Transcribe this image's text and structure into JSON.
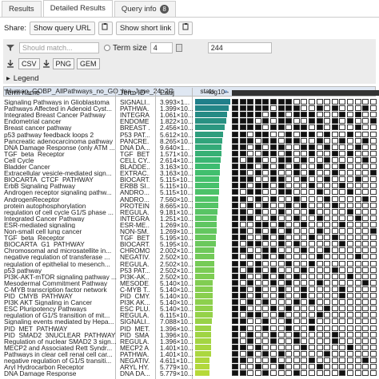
{
  "tabs": [
    {
      "label": "Results"
    },
    {
      "label": "Detailed Results"
    },
    {
      "label": "Query info",
      "badge": "8"
    }
  ],
  "share": {
    "label": "Share:",
    "query_url": "Show query URL",
    "short_link": "Show short link"
  },
  "filter": {
    "search_placeholder": "Should match...",
    "term_size_label": "Term size",
    "term_size_min": "4",
    "term_size_max": "244"
  },
  "export": {
    "buttons": [
      "CSV",
      "PNG",
      "GEM"
    ]
  },
  "legend_label": "Legend",
  "table": {
    "title": "Human_GOBP_AllPathways_no_GO_iea_June_24_2C",
    "stats": "stats",
    "headers": {
      "term": "Term name",
      "id": "Term ID",
      "padj": "Padj",
      "bar": "--log10--"
    },
    "rows": [
      {
        "name": "Signaling Pathways in Glioblastoma",
        "id": "SIGNALI...",
        "padj": "3.993×1...",
        "bar": 1.0,
        "cells": [
          1,
          1,
          1,
          1,
          1,
          1,
          1,
          1,
          0,
          0,
          0,
          0,
          0,
          0,
          0,
          0,
          0,
          0,
          0
        ]
      },
      {
        "name": "Pathways Affected in Adenoid Cyst...",
        "id": "PATHWA...",
        "padj": "1.399×10...",
        "bar": 0.95,
        "cells": [
          1,
          1,
          1,
          1,
          1,
          0,
          1,
          1,
          1,
          0,
          0,
          1,
          0,
          1,
          0,
          0,
          0,
          1,
          0
        ]
      },
      {
        "name": "Integrated Breast Cancer Pathway",
        "id": "INTEGRA...",
        "padj": "1.061×10...",
        "bar": 0.92,
        "cells": [
          1,
          1,
          1,
          1,
          0,
          1,
          1,
          0,
          1,
          1,
          1,
          0,
          0,
          0,
          1,
          0,
          1,
          0,
          0
        ]
      },
      {
        "name": "Endometrial cancer",
        "id": "ENDOME...",
        "padj": "1.822×10...",
        "bar": 0.88,
        "cells": [
          1,
          1,
          1,
          0,
          1,
          0,
          1,
          1,
          0,
          0,
          1,
          1,
          0,
          1,
          0,
          1,
          0,
          0,
          1
        ]
      },
      {
        "name": "Breast cancer pathway",
        "id": "BREAST ...",
        "padj": "2.456×10...",
        "bar": 0.85,
        "cells": [
          1,
          1,
          1,
          1,
          0,
          1,
          1,
          0,
          1,
          1,
          0,
          1,
          0,
          1,
          0,
          0,
          1,
          0,
          0
        ]
      },
      {
        "name": "p53 pathway feedback loops 2",
        "id": "P53 PAT...",
        "padj": "5.612×10...",
        "bar": 0.8,
        "cells": [
          1,
          1,
          0,
          1,
          1,
          0,
          0,
          1,
          0,
          1,
          1,
          0,
          1,
          0,
          0,
          1,
          0,
          0,
          0
        ]
      },
      {
        "name": "Pancreatic adenocarcinoma pathway",
        "id": "PANCRE...",
        "padj": "8.265×10...",
        "bar": 0.78,
        "cells": [
          1,
          1,
          1,
          0,
          1,
          1,
          0,
          1,
          1,
          0,
          0,
          1,
          0,
          0,
          1,
          0,
          0,
          1,
          0
        ]
      },
      {
        "name": "DNA Damage Response (only ATM ...",
        "id": "DNA DA...",
        "padj": "9.640×1...",
        "bar": 0.76,
        "cells": [
          1,
          1,
          0,
          1,
          0,
          1,
          1,
          0,
          0,
          1,
          1,
          0,
          1,
          0,
          0,
          0,
          1,
          0,
          0
        ]
      },
      {
        "name": "TGF_beta_Receptor",
        "id": "TGF_BET...",
        "padj": "1.571×10...",
        "bar": 0.74,
        "cells": [
          1,
          1,
          0,
          0,
          1,
          1,
          0,
          1,
          0,
          0,
          1,
          0,
          0,
          1,
          0,
          1,
          0,
          0,
          0
        ]
      },
      {
        "name": "Cell Cycle",
        "id": "CELL CY...",
        "padj": "2.614×10...",
        "bar": 0.72,
        "cells": [
          1,
          0,
          1,
          1,
          0,
          0,
          1,
          1,
          0,
          1,
          0,
          0,
          1,
          0,
          0,
          0,
          0,
          1,
          0
        ]
      },
      {
        "name": "Bladder Cancer",
        "id": "BLADDE...",
        "padj": "3.163×10...",
        "bar": 0.7,
        "cells": [
          1,
          1,
          1,
          0,
          1,
          0,
          1,
          0,
          1,
          0,
          0,
          1,
          0,
          0,
          1,
          0,
          0,
          0,
          0
        ]
      },
      {
        "name": "Extracellular vesicle-mediated sign...",
        "id": "EXTRAC...",
        "padj": "3.163×10...",
        "bar": 0.7,
        "cells": [
          1,
          1,
          0,
          1,
          0,
          1,
          0,
          0,
          1,
          0,
          1,
          0,
          0,
          1,
          0,
          0,
          0,
          0,
          1
        ]
      },
      {
        "name": "BIOCARTA_CTCF_PATHWAY",
        "id": "BIOCART...",
        "padj": "5.115×10...",
        "bar": 0.68,
        "cells": [
          1,
          1,
          1,
          0,
          0,
          1,
          1,
          0,
          0,
          1,
          0,
          0,
          1,
          0,
          0,
          0,
          1,
          0,
          0
        ]
      },
      {
        "name": "ErbB Signaling Pathway",
        "id": "ERBB SI...",
        "padj": "5.115×10...",
        "bar": 0.68,
        "cells": [
          1,
          1,
          0,
          1,
          1,
          0,
          1,
          0,
          0,
          0,
          1,
          0,
          0,
          0,
          1,
          0,
          0,
          0,
          0
        ]
      },
      {
        "name": "Androgen receptor signaling pathw...",
        "id": "ANDRO...",
        "padj": "5.115×10...",
        "bar": 0.68,
        "cells": [
          1,
          0,
          1,
          1,
          0,
          0,
          1,
          1,
          0,
          0,
          0,
          1,
          0,
          0,
          0,
          1,
          0,
          0,
          0
        ]
      },
      {
        "name": "AndrogenReceptor",
        "id": "ANDRO...",
        "padj": "7.560×10...",
        "bar": 0.66,
        "cells": [
          1,
          1,
          0,
          1,
          0,
          1,
          0,
          0,
          1,
          0,
          0,
          0,
          1,
          0,
          0,
          0,
          0,
          1,
          0
        ]
      },
      {
        "name": "protein autophosphorylation",
        "id": "PROTEIN...",
        "padj": "8.665×10...",
        "bar": 0.65,
        "cells": [
          1,
          0,
          1,
          0,
          1,
          0,
          0,
          1,
          0,
          1,
          0,
          0,
          0,
          1,
          0,
          0,
          0,
          0,
          0
        ]
      },
      {
        "name": "regulation of cell cycle G1/S phase ...",
        "id": "REGULA...",
        "padj": "9.181×10...",
        "bar": 0.64,
        "cells": [
          1,
          1,
          0,
          1,
          0,
          0,
          1,
          0,
          0,
          0,
          1,
          0,
          0,
          0,
          0,
          1,
          0,
          0,
          0
        ]
      },
      {
        "name": "Integrated Cancer Pathway",
        "id": "INTEGRA...",
        "padj": "1.251×10...",
        "bar": 0.62,
        "cells": [
          1,
          1,
          1,
          0,
          0,
          1,
          0,
          0,
          1,
          0,
          0,
          1,
          0,
          0,
          0,
          0,
          1,
          0,
          0
        ]
      },
      {
        "name": "ESR-mediated signaling",
        "id": "ESR-ME...",
        "padj": "1.269×10...",
        "bar": 0.62,
        "cells": [
          1,
          0,
          0,
          1,
          1,
          0,
          1,
          0,
          0,
          1,
          0,
          0,
          0,
          0,
          1,
          0,
          0,
          0,
          0
        ]
      },
      {
        "name": "Non-small cell lung cancer",
        "id": "NON-SM...",
        "padj": "1.269×10...",
        "bar": 0.62,
        "cells": [
          1,
          1,
          0,
          1,
          0,
          1,
          0,
          1,
          0,
          0,
          0,
          1,
          0,
          0,
          0,
          0,
          0,
          0,
          1
        ]
      },
      {
        "name": "TGF_beta_Receptor",
        "id": "TGF_BET...",
        "padj": "5.195×10...",
        "bar": 0.58,
        "cells": [
          1,
          1,
          0,
          0,
          1,
          0,
          1,
          0,
          0,
          0,
          1,
          0,
          0,
          1,
          0,
          0,
          0,
          0,
          0
        ]
      },
      {
        "name": "BIOCARTA_G1_PATHWAY",
        "id": "BIOCART...",
        "padj": "5.195×10...",
        "bar": 0.58,
        "cells": [
          1,
          0,
          1,
          1,
          0,
          0,
          1,
          0,
          1,
          0,
          0,
          0,
          0,
          0,
          1,
          0,
          0,
          0,
          0
        ]
      },
      {
        "name": "Chromosomal and microsatellite in...",
        "id": "CHROMO...",
        "padj": "2.002×10...",
        "bar": 0.55,
        "cells": [
          1,
          1,
          0,
          0,
          1,
          1,
          0,
          0,
          0,
          1,
          0,
          0,
          1,
          0,
          0,
          0,
          0,
          0,
          0
        ]
      },
      {
        "name": "negative regulation of transferase ...",
        "id": "NEGATIV...",
        "padj": "2.502×10...",
        "bar": 0.54,
        "cells": [
          1,
          0,
          1,
          0,
          1,
          0,
          1,
          0,
          0,
          0,
          0,
          1,
          0,
          0,
          0,
          0,
          1,
          0,
          0
        ]
      },
      {
        "name": "regulation of epithelial to mesench...",
        "id": "REGULA...",
        "padj": "2.502×10...",
        "bar": 0.54,
        "cells": [
          1,
          1,
          0,
          1,
          0,
          0,
          0,
          1,
          0,
          0,
          1,
          0,
          0,
          0,
          0,
          0,
          0,
          0,
          0
        ]
      },
      {
        "name": "p53 pathway",
        "id": "P53 PAT...",
        "padj": "2.502×10...",
        "bar": 0.54,
        "cells": [
          1,
          0,
          1,
          1,
          0,
          1,
          0,
          0,
          0,
          1,
          0,
          0,
          0,
          1,
          0,
          0,
          0,
          0,
          0
        ]
      },
      {
        "name": "PI3K-AKT-mTOR signaling pathway ...",
        "id": "PI3K-AK...",
        "padj": "2.502×10...",
        "bar": 0.54,
        "cells": [
          1,
          1,
          0,
          0,
          1,
          0,
          1,
          0,
          1,
          0,
          0,
          0,
          0,
          0,
          0,
          1,
          0,
          0,
          0
        ]
      },
      {
        "name": "Mesodermal Commitment Pathway",
        "id": "MESODE...",
        "padj": "5.140×10...",
        "bar": 0.5,
        "cells": [
          1,
          0,
          1,
          0,
          0,
          1,
          0,
          1,
          0,
          0,
          0,
          1,
          0,
          0,
          0,
          0,
          0,
          1,
          0
        ]
      },
      {
        "name": "C-MYB transcription factor network",
        "id": "C-MYB T...",
        "padj": "5.140×10...",
        "bar": 0.5,
        "cells": [
          1,
          1,
          0,
          1,
          0,
          0,
          1,
          0,
          0,
          1,
          0,
          0,
          0,
          0,
          1,
          0,
          0,
          0,
          0
        ]
      },
      {
        "name": "PID_CMYB_PATHWAY",
        "id": "PID_CMY...",
        "padj": "5.140×10...",
        "bar": 0.5,
        "cells": [
          1,
          1,
          0,
          1,
          0,
          0,
          1,
          0,
          0,
          1,
          0,
          0,
          0,
          0,
          1,
          0,
          0,
          0,
          0
        ]
      },
      {
        "name": "PI3K AKT Signaling in Cancer",
        "id": "PI3K AK...",
        "padj": "5.140×10...",
        "bar": 0.5,
        "cells": [
          1,
          0,
          1,
          0,
          1,
          0,
          0,
          0,
          1,
          0,
          1,
          0,
          0,
          0,
          0,
          0,
          0,
          0,
          0
        ]
      },
      {
        "name": "ESC Pluripotency Pathways",
        "id": "ESC PLU...",
        "padj": "5.140×10...",
        "bar": 0.5,
        "cells": [
          1,
          1,
          0,
          0,
          0,
          1,
          0,
          1,
          0,
          0,
          0,
          0,
          1,
          0,
          0,
          0,
          0,
          0,
          0
        ]
      },
      {
        "name": "regulation of G1/S transition of mit...",
        "id": "REGULA...",
        "padj": "6.115×10...",
        "bar": 0.49,
        "cells": [
          1,
          0,
          1,
          1,
          0,
          0,
          1,
          0,
          0,
          0,
          0,
          1,
          0,
          0,
          0,
          0,
          0,
          0,
          0
        ]
      },
      {
        "name": "Signaling events mediated by Hepa...",
        "id": "SIGNALI...",
        "padj": "7.088×10...",
        "bar": 0.48,
        "cells": [
          1,
          1,
          0,
          0,
          1,
          0,
          0,
          1,
          0,
          0,
          1,
          0,
          0,
          0,
          0,
          0,
          0,
          0,
          0
        ]
      },
      {
        "name": "PID_MET_PATHWAY",
        "id": "PID_MET...",
        "padj": "1.396×10...",
        "bar": 0.45,
        "cells": [
          1,
          1,
          0,
          0,
          1,
          0,
          0,
          1,
          0,
          0,
          1,
          0,
          0,
          0,
          0,
          0,
          0,
          0,
          0
        ]
      },
      {
        "name": "PID_SMAD2_3NUCLEAR_PATHWAY",
        "id": "PID_SMA...",
        "padj": "1.396×10...",
        "bar": 0.45,
        "cells": [
          1,
          0,
          1,
          0,
          0,
          1,
          0,
          0,
          1,
          0,
          0,
          0,
          0,
          1,
          0,
          0,
          0,
          0,
          0
        ]
      },
      {
        "name": "Regulation of nuclear SMAD2 3 sign...",
        "id": "REGULA...",
        "padj": "1.396×10...",
        "bar": 0.45,
        "cells": [
          1,
          0,
          1,
          0,
          0,
          1,
          0,
          0,
          1,
          0,
          0,
          0,
          0,
          1,
          0,
          0,
          0,
          0,
          0
        ]
      },
      {
        "name": "MECP2 and Associated Rett Syndr...",
        "id": "MECP2 A...",
        "padj": "1.401×10...",
        "bar": 0.45,
        "cells": [
          1,
          1,
          0,
          1,
          0,
          0,
          0,
          0,
          0,
          1,
          0,
          0,
          0,
          0,
          0,
          1,
          0,
          0,
          0
        ]
      },
      {
        "name": "Pathways in clear cell renal cell car...",
        "id": "PATHWA...",
        "padj": "1.401×10...",
        "bar": 0.45,
        "cells": [
          1,
          0,
          1,
          0,
          1,
          0,
          1,
          0,
          0,
          0,
          0,
          0,
          1,
          0,
          0,
          0,
          0,
          0,
          0
        ]
      },
      {
        "name": "negative regulation of G1/S transiti...",
        "id": "NEGATIV...",
        "padj": "4.611×10...",
        "bar": 0.42,
        "cells": [
          1,
          1,
          0,
          0,
          0,
          1,
          0,
          0,
          0,
          0,
          1,
          0,
          0,
          0,
          0,
          0,
          0,
          1,
          0
        ]
      },
      {
        "name": "Aryl Hydrocarbon Receptor",
        "id": "ARYL HY...",
        "padj": "5.779×10...",
        "bar": 0.4,
        "cells": [
          1,
          0,
          0,
          1,
          0,
          0,
          1,
          0,
          0,
          0,
          0,
          1,
          0,
          0,
          0,
          0,
          0,
          0,
          0
        ]
      },
      {
        "name": "DNA Damage Response",
        "id": "DNA DA...",
        "padj": "5.779×10...",
        "bar": 0.4,
        "cells": [
          1,
          1,
          0,
          0,
          1,
          0,
          0,
          0,
          1,
          0,
          0,
          0,
          0,
          0,
          1,
          0,
          0,
          0,
          0
        ]
      }
    ]
  },
  "colors": {
    "bar_top": "#1f7f8a",
    "bar_mid": "#3fbf6f",
    "bar_bottom": "#b6d93a",
    "header_bg": "#dfe7f2",
    "panel_bg": "#ececec"
  }
}
